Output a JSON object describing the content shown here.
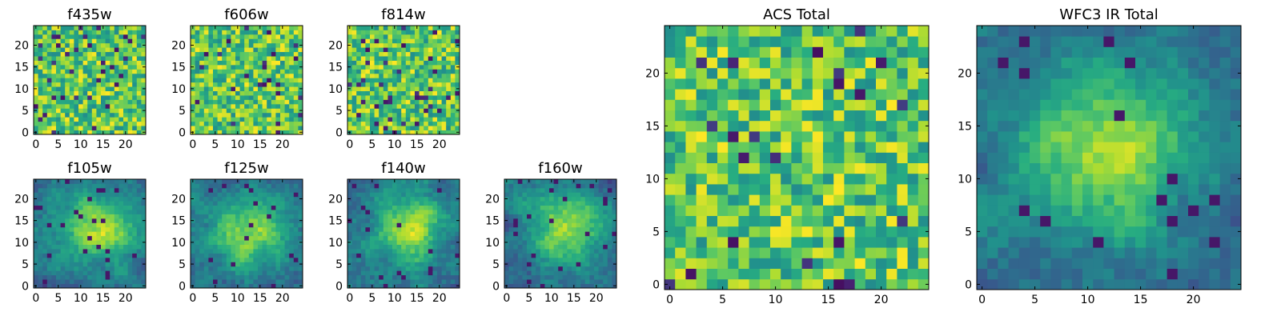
{
  "chart_data": [
    {
      "type": "heatmap",
      "id": "f435w",
      "title": "f435w",
      "size": 25,
      "colormap": "viridis",
      "xticks": [
        0,
        5,
        10,
        15,
        20
      ],
      "yticks": [
        0,
        5,
        10,
        15,
        20
      ],
      "texture": "noise",
      "value_range": [
        0,
        1
      ],
      "note": "pixel values are estimated; image is 25x25 noisy thumbnail"
    },
    {
      "type": "heatmap",
      "id": "f606w",
      "title": "f606w",
      "size": 25,
      "colormap": "viridis",
      "xticks": [
        0,
        5,
        10,
        15,
        20
      ],
      "yticks": [
        0,
        5,
        10,
        15,
        20
      ],
      "texture": "noise",
      "value_range": [
        0,
        1
      ]
    },
    {
      "type": "heatmap",
      "id": "f814w",
      "title": "f814w",
      "size": 25,
      "colormap": "viridis",
      "xticks": [
        0,
        5,
        10,
        15,
        20
      ],
      "yticks": [
        0,
        5,
        10,
        15,
        20
      ],
      "texture": "noise",
      "value_range": [
        0,
        1
      ]
    },
    {
      "type": "heatmap",
      "id": "f105w",
      "title": "f105w",
      "size": 25,
      "colormap": "viridis",
      "xticks": [
        0,
        5,
        10,
        15,
        20
      ],
      "yticks": [
        0,
        5,
        10,
        15,
        20
      ],
      "texture": "smooth",
      "bright_center": [
        14,
        13
      ],
      "value_range": [
        0,
        1
      ]
    },
    {
      "type": "heatmap",
      "id": "f125w",
      "title": "f125w",
      "size": 25,
      "colormap": "viridis",
      "xticks": [
        0,
        5,
        10,
        15,
        20
      ],
      "yticks": [
        0,
        5,
        10,
        15,
        20
      ],
      "texture": "smooth",
      "bright_center": [
        13,
        12
      ],
      "value_range": [
        0,
        1
      ]
    },
    {
      "type": "heatmap",
      "id": "f140w",
      "title": "f140w",
      "size": 25,
      "colormap": "viridis",
      "xticks": [
        0,
        5,
        10,
        15,
        20
      ],
      "yticks": [
        0,
        5,
        10,
        15,
        20
      ],
      "texture": "smooth",
      "bright_center": [
        13,
        13
      ],
      "value_range": [
        0,
        1
      ]
    },
    {
      "type": "heatmap",
      "id": "f160w",
      "title": "f160w",
      "size": 25,
      "colormap": "viridis",
      "xticks": [
        0,
        5,
        10,
        15,
        20
      ],
      "yticks": [
        0,
        5,
        10,
        15,
        20
      ],
      "texture": "smooth",
      "bright_center": [
        13,
        14
      ],
      "value_range": [
        0,
        1
      ]
    },
    {
      "type": "heatmap",
      "id": "acs-total",
      "title": "ACS Total",
      "size": 25,
      "colormap": "viridis",
      "xticks": [
        0,
        5,
        10,
        15,
        20
      ],
      "yticks": [
        0,
        5,
        10,
        15,
        20
      ],
      "texture": "noise",
      "value_range": [
        0,
        1
      ]
    },
    {
      "type": "heatmap",
      "id": "wfc3-ir-total",
      "title": "WFC3 IR Total",
      "size": 25,
      "colormap": "viridis",
      "xticks": [
        0,
        5,
        10,
        15,
        20
      ],
      "yticks": [
        0,
        5,
        10,
        15,
        20
      ],
      "texture": "smooth",
      "bright_center": [
        12,
        13
      ],
      "value_range": [
        0,
        1
      ]
    }
  ]
}
